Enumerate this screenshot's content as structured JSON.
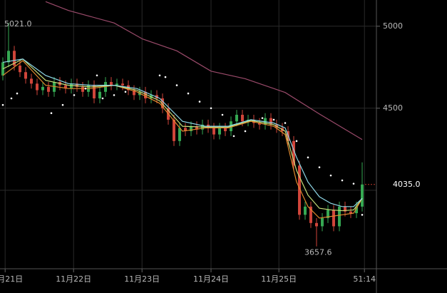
{
  "chart_data": {
    "type": "candlestick",
    "xlim": [
      0,
      66
    ],
    "ylim": [
      3521,
      5160
    ],
    "yticks": [
      4500,
      5000
    ],
    "grid_lines": [
      4000,
      4500,
      5000
    ],
    "xticks": [
      {
        "value": 0.9,
        "label": "11月21日"
      },
      {
        "value": 12.9,
        "label": "11月22日"
      },
      {
        "value": 24.9,
        "label": "11月23日"
      },
      {
        "value": 37,
        "label": "11月24日"
      },
      {
        "value": 48.9,
        "label": "11月25日"
      },
      {
        "value": 63.9,
        "label": "51:14"
      }
    ],
    "up_color": "#35a852",
    "down_color": "#d0453a",
    "open": [
      4700,
      4780,
      4850,
      4760,
      4720,
      4680,
      4650,
      4610,
      4630,
      4600,
      4660,
      4640,
      4620,
      4650,
      4630,
      4600,
      4640,
      4560,
      4600,
      4660,
      4640,
      4650,
      4640,
      4610,
      4580,
      4600,
      4560,
      4580,
      4560,
      4500,
      4430,
      4300,
      4380,
      4360,
      4390,
      4370,
      4400,
      4380,
      4340,
      4380,
      4360,
      4420,
      4460,
      4420,
      4430,
      4410,
      4400,
      4440,
      4400,
      4380,
      4360,
      4300,
      4150,
      3850,
      3900,
      3800,
      3780,
      3830,
      3880,
      3780,
      3900,
      3870,
      3860,
      3900
    ],
    "high": [
      4810,
      5021,
      4880,
      4790,
      4750,
      4710,
      4680,
      4660,
      4660,
      4690,
      4690,
      4670,
      4680,
      4680,
      4660,
      4670,
      4670,
      4630,
      4690,
      4690,
      4680,
      4680,
      4670,
      4640,
      4630,
      4630,
      4610,
      4610,
      4590,
      4530,
      4460,
      4410,
      4410,
      4420,
      4420,
      4430,
      4430,
      4410,
      4410,
      4410,
      4450,
      4490,
      4490,
      4460,
      4460,
      4440,
      4470,
      4470,
      4430,
      4410,
      4390,
      4330,
      4180,
      3930,
      3930,
      3830,
      3860,
      3910,
      3910,
      3930,
      3930,
      3900,
      3930,
      4170
    ],
    "low": [
      4670,
      4750,
      4730,
      4690,
      4650,
      4620,
      4580,
      4580,
      4570,
      4570,
      4610,
      4590,
      4590,
      4600,
      4570,
      4570,
      4530,
      4530,
      4570,
      4610,
      4610,
      4610,
      4580,
      4550,
      4550,
      4530,
      4530,
      4530,
      4470,
      4400,
      4270,
      4270,
      4330,
      4330,
      4340,
      4340,
      4350,
      4310,
      4310,
      4330,
      4330,
      4390,
      4390,
      4390,
      4380,
      4370,
      4370,
      4370,
      4350,
      4330,
      4270,
      4120,
      3820,
      3820,
      3770,
      3657.6,
      3750,
      3800,
      3750,
      3750,
      3840,
      3830,
      3830,
      3870
    ],
    "close": [
      4780,
      4850,
      4760,
      4720,
      4680,
      4650,
      4610,
      4630,
      4600,
      4660,
      4640,
      4620,
      4650,
      4630,
      4600,
      4640,
      4560,
      4600,
      4660,
      4640,
      4650,
      4640,
      4610,
      4580,
      4600,
      4560,
      4580,
      4560,
      4500,
      4430,
      4300,
      4380,
      4360,
      4390,
      4370,
      4400,
      4380,
      4340,
      4380,
      4360,
      4420,
      4460,
      4420,
      4430,
      4410,
      4400,
      4440,
      4400,
      4380,
      4360,
      4300,
      4150,
      3850,
      3900,
      3800,
      3780,
      3830,
      3880,
      3780,
      3900,
      3870,
      3860,
      3900,
      4035
    ],
    "series": [
      {
        "color": "#e08a2e",
        "x": [
          0.5,
          4,
          8,
          12,
          16,
          20,
          24,
          28,
          32,
          36,
          40,
          44,
          48,
          50,
          52,
          54,
          56,
          58,
          60,
          62,
          63.5
        ],
        "values": [
          4700,
          4790,
          4640,
          4620,
          4620,
          4640,
          4600,
          4530,
          4360,
          4380,
          4380,
          4420,
          4390,
          4340,
          4050,
          3900,
          3830,
          3840,
          3850,
          3860,
          3950
        ]
      },
      {
        "color": "#c8e07a",
        "x": [
          0.5,
          4,
          8,
          12,
          16,
          20,
          24,
          28,
          32,
          36,
          40,
          44,
          48,
          50,
          52,
          54,
          56,
          58,
          60,
          62,
          63.5
        ],
        "values": [
          4740,
          4800,
          4670,
          4640,
          4630,
          4640,
          4610,
          4545,
          4390,
          4385,
          4385,
          4425,
          4400,
          4360,
          4120,
          3970,
          3890,
          3880,
          3875,
          3880,
          3950
        ]
      },
      {
        "color": "#8fd8e8",
        "x": [
          0.5,
          4,
          8,
          12,
          16,
          20,
          24,
          28,
          32,
          36,
          40,
          44,
          48,
          50,
          52,
          54,
          56,
          58,
          60,
          62,
          63.5
        ],
        "values": [
          4780,
          4800,
          4700,
          4650,
          4640,
          4640,
          4620,
          4560,
          4420,
          4390,
          4390,
          4430,
          4410,
          4380,
          4200,
          4050,
          3960,
          3920,
          3900,
          3900,
          3950
        ]
      },
      {
        "color": "#9a4a6a",
        "x": [
          8,
          12,
          20,
          25,
          31,
          37,
          43,
          50,
          56,
          63.5
        ],
        "values": [
          5150,
          5096,
          5020,
          4922,
          4850,
          4726,
          4680,
          4596,
          4465,
          4309
        ]
      }
    ],
    "sar": {
      "color": "#ffffff",
      "x": [
        0.5,
        2,
        3,
        9,
        11,
        13,
        15,
        17,
        18,
        20,
        22,
        28,
        29,
        31,
        33,
        35,
        37,
        39,
        41,
        43,
        46,
        48,
        50,
        52,
        54,
        56,
        58,
        60,
        62,
        63.5
      ],
      "values": [
        4520,
        4560,
        4590,
        4470,
        4520,
        4580,
        4620,
        4700,
        4560,
        4580,
        4600,
        4700,
        4690,
        4640,
        4590,
        4540,
        4500,
        4460,
        4330,
        4360,
        4440,
        4430,
        4410,
        4300,
        4200,
        4140,
        4090,
        4060,
        4040,
        3850
      ]
    },
    "high_label": "5021.0",
    "low_label": "3657.6",
    "last_price": 4035,
    "last_price_label": "4035.0"
  }
}
